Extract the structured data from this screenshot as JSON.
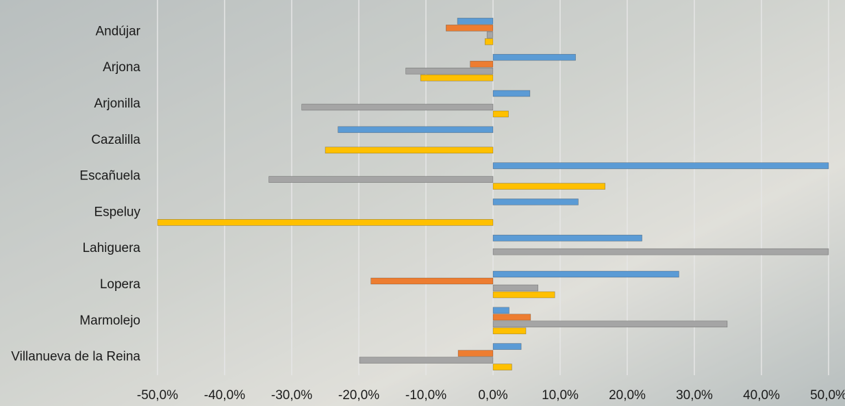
{
  "chart_data": {
    "type": "hbar",
    "categories": [
      "Andújar",
      "Arjona",
      "Arjonilla",
      "Cazalilla",
      "Escañuela",
      "Espeluy",
      "Lahiguera",
      "Lopera",
      "Marmolejo",
      "Villanueva de la Reina"
    ],
    "series": [
      {
        "color": "#5b9bd5",
        "values": [
          -5.3,
          12.3,
          5.5,
          -23.1,
          50.0,
          12.7,
          22.2,
          27.7,
          2.4,
          4.2
        ]
      },
      {
        "color": "#ed7d31",
        "values": [
          -7.0,
          -3.4,
          0,
          0,
          0,
          0,
          0,
          -18.2,
          5.6,
          -5.2
        ]
      },
      {
        "color": "#a5a5a5",
        "values": [
          -0.9,
          -13.0,
          -28.5,
          0,
          -33.4,
          0,
          50.0,
          6.7,
          34.9,
          -19.9
        ]
      },
      {
        "color": "#ffc000",
        "values": [
          -1.2,
          -10.8,
          2.3,
          -25.0,
          16.7,
          -50.0,
          0,
          9.2,
          4.9,
          2.8
        ]
      }
    ],
    "xlim": [
      -50,
      50
    ],
    "xticks": [
      {
        "value": -50,
        "label": "-50,0%"
      },
      {
        "value": -40,
        "label": "-40,0%"
      },
      {
        "value": -30,
        "label": "-30,0%"
      },
      {
        "value": -20,
        "label": "-20,0%"
      },
      {
        "value": -10,
        "label": "-10,0%"
      },
      {
        "value": 0,
        "label": "0,0%"
      },
      {
        "value": 10,
        "label": "10,0%"
      },
      {
        "value": 20,
        "label": "20,0%"
      },
      {
        "value": 30,
        "label": "30,0%"
      },
      {
        "value": 40,
        "label": "40,0%"
      },
      {
        "value": 50,
        "label": "50,0%"
      }
    ],
    "grid": true
  }
}
